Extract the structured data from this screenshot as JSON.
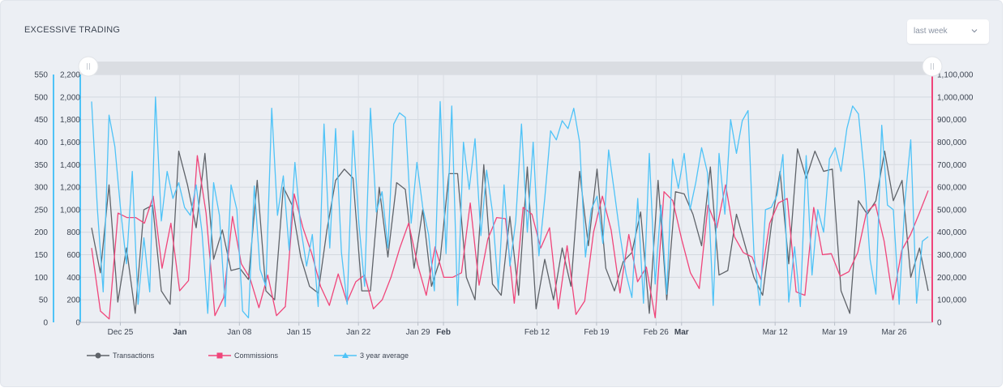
{
  "header": {
    "title": "EXCESSIVE TRADING"
  },
  "period_select": {
    "value": "last week",
    "icon": "chevron-down-icon"
  },
  "navigator": {
    "handle_left_icon": "grip-handle-icon",
    "handle_right_icon": "grip-handle-icon"
  },
  "chart_data": {
    "type": "line",
    "x_start": "2017-12-20",
    "x_ticks": [
      {
        "label": "Dec 25",
        "date": "2017-12-25",
        "bold": false
      },
      {
        "label": "Jan",
        "date": "2018-01-01",
        "bold": true
      },
      {
        "label": "Jan 08",
        "date": "2018-01-08",
        "bold": false
      },
      {
        "label": "Jan 15",
        "date": "2018-01-15",
        "bold": false
      },
      {
        "label": "Jan 22",
        "date": "2018-01-22",
        "bold": false
      },
      {
        "label": "Jan 29",
        "date": "2018-01-29",
        "bold": false
      },
      {
        "label": "Feb",
        "date": "2018-02-01",
        "bold": true
      },
      {
        "label": "Feb 12",
        "date": "2018-02-12",
        "bold": false
      },
      {
        "label": "Feb 19",
        "date": "2018-02-19",
        "bold": false
      },
      {
        "label": "Feb 26",
        "date": "2018-02-26",
        "bold": false
      },
      {
        "label": "Mar",
        "date": "2018-03-01",
        "bold": true
      },
      {
        "label": "Mar 12",
        "date": "2018-03-12",
        "bold": false
      },
      {
        "label": "Mar 19",
        "date": "2018-03-19",
        "bold": false
      },
      {
        "label": "Mar 26",
        "date": "2018-03-26",
        "bold": false
      }
    ],
    "y_axes": [
      {
        "name": "outer-left",
        "ticks": [
          "0",
          "50",
          "100",
          "150",
          "200",
          "250",
          "300",
          "350",
          "400",
          "450",
          "500",
          "550"
        ],
        "range": [
          0,
          550
        ],
        "color": "#4fc3f7"
      },
      {
        "name": "inner-left",
        "ticks": [
          "0",
          "200",
          "400",
          "600",
          "800",
          "1,000",
          "1,200",
          "1,400",
          "1,600",
          "1,800",
          "2,000",
          "2,200"
        ],
        "range": [
          0,
          2200
        ],
        "color": "#4fc3f7"
      },
      {
        "name": "right",
        "ticks": [
          "0",
          "100,000",
          "200,000",
          "300,000",
          "400,000",
          "500,000",
          "600,000",
          "700,000",
          "800,000",
          "900,000",
          "1,000,000",
          "1,100,000"
        ],
        "range": [
          0,
          1100000
        ],
        "color": "#f0457a"
      }
    ],
    "legend": [
      {
        "name": "Transactions",
        "color": "#5f6369",
        "marker": "circle"
      },
      {
        "name": "Commissions",
        "color": "#f0457a",
        "marker": "square"
      },
      {
        "name": "3 year average",
        "color": "#4fc3f7",
        "marker": "triangle"
      }
    ],
    "series": [
      {
        "name": "Transactions",
        "color": "#5f6369",
        "axis": "outer-left",
        "values": [
          210,
          110,
          305,
          45,
          165,
          20,
          250,
          260,
          70,
          40,
          380,
          305,
          210,
          375,
          140,
          205,
          115,
          120,
          95,
          315,
          70,
          50,
          300,
          260,
          145,
          80,
          65,
          205,
          315,
          340,
          320,
          70,
          70,
          300,
          145,
          310,
          295,
          120,
          250,
          80,
          140,
          330,
          330,
          100,
          50,
          350,
          85,
          60,
          235,
          60,
          345,
          30,
          140,
          50,
          165,
          80,
          335,
          170,
          340,
          120,
          70,
          135,
          155,
          245,
          20,
          315,
          50,
          290,
          285,
          240,
          170,
          345,
          105,
          115,
          240,
          170,
          100,
          60,
          215,
          335,
          130,
          385,
          320,
          380,
          335,
          340,
          70,
          20,
          270,
          240,
          270,
          380,
          270,
          315,
          100,
          165,
          70
        ],
        "ax_scale": 1
      },
      {
        "name": "Commissions",
        "color": "#f0457a",
        "axis": "right",
        "values": [
          330000,
          50000,
          15000,
          485000,
          465000,
          465000,
          440000,
          560000,
          240000,
          440000,
          140000,
          185000,
          740000,
          485000,
          30000,
          110000,
          470000,
          260000,
          195000,
          65000,
          210000,
          30000,
          70000,
          570000,
          420000,
          305000,
          160000,
          75000,
          215000,
          90000,
          180000,
          210000,
          60000,
          100000,
          200000,
          330000,
          440000,
          260000,
          120000,
          335000,
          200000,
          200000,
          220000,
          530000,
          165000,
          370000,
          465000,
          460000,
          85000,
          510000,
          480000,
          330000,
          420000,
          60000,
          340000,
          35000,
          95000,
          400000,
          560000,
          410000,
          130000,
          390000,
          180000,
          245000,
          20000,
          580000,
          540000,
          370000,
          220000,
          150000,
          520000,
          420000,
          610000,
          380000,
          310000,
          290000,
          190000,
          440000,
          530000,
          550000,
          135000,
          120000,
          510000,
          300000,
          305000,
          205000,
          225000,
          310000,
          490000,
          525000,
          360000,
          100000,
          320000,
          390000,
          485000,
          585000
        ],
        "ax_scale": 1
      },
      {
        "name": "3 year average",
        "color": "#4fc3f7",
        "axis": "inner-left",
        "values": [
          1960,
          1000,
          270,
          1840,
          1560,
          1000,
          520,
          1340,
          160,
          750,
          270,
          2000,
          900,
          1340,
          1100,
          1240,
          1020,
          950,
          1220,
          800,
          80,
          1240,
          950,
          140,
          1220,
          1000,
          100,
          40,
          1210,
          470,
          320,
          1900,
          950,
          1300,
          640,
          1420,
          840,
          500,
          780,
          140,
          1760,
          660,
          1720,
          620,
          160,
          1700,
          880,
          320,
          1900,
          980,
          1160,
          660,
          1760,
          1860,
          1820,
          880,
          1420,
          1020,
          780,
          280,
          1960,
          610,
          1920,
          150,
          1600,
          1180,
          1630,
          770,
          1350,
          980,
          290,
          1220,
          500,
          900,
          1760,
          800,
          1600,
          590,
          1100,
          1700,
          1620,
          1790,
          1720,
          1900,
          1600,
          580,
          1000,
          1120,
          700,
          1530,
          1150,
          760,
          430,
          220,
          1100,
          170,
          1500,
          340,
          1040,
          250,
          1450,
          1190,
          1500,
          1000,
          1240,
          1550,
          1330,
          150,
          1500,
          960,
          1800,
          1500,
          1790,
          1880,
          620,
          150,
          1000,
          1020,
          1130,
          1490,
          180,
          670,
          140,
          1480,
          420,
          1000,
          800,
          1450,
          1550,
          1340,
          1720,
          1920,
          1850,
          1320,
          560,
          250,
          1750,
          1040,
          1000,
          160,
          1070,
          1620,
          170,
          720,
          760
        ],
        "ax_scale": 1
      }
    ]
  }
}
